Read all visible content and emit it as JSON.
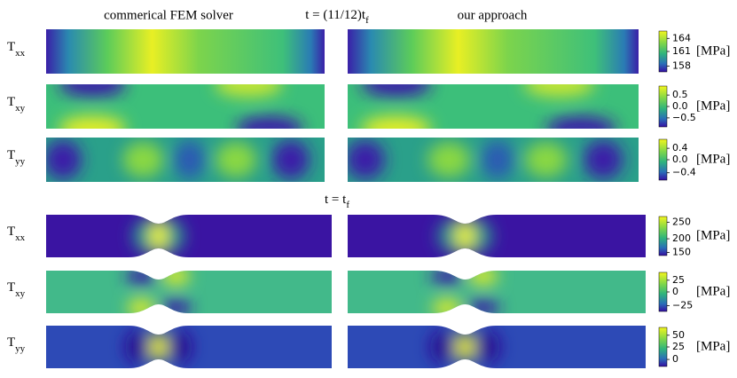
{
  "columns": [
    "commerical FEM solver",
    "our approach"
  ],
  "panels": [
    {
      "time": "t = (11/12)t",
      "time_sub": "f",
      "rows": [
        {
          "label": "T",
          "sub": "xx",
          "ticks": [
            "164",
            "161",
            "158"
          ],
          "unit": "[MPa]"
        },
        {
          "label": "T",
          "sub": "xy",
          "ticks": [
            "0.5",
            "0.0",
            "−0.5"
          ],
          "unit": "[MPa]"
        },
        {
          "label": "T",
          "sub": "yy",
          "ticks": [
            "0.4",
            "0.0",
            "−0.4"
          ],
          "unit": "[MPa]"
        }
      ]
    },
    {
      "time": "t = t",
      "time_sub": "f",
      "rows": [
        {
          "label": "T",
          "sub": "xx",
          "ticks": [
            "250",
            "200",
            "150"
          ],
          "unit": "[MPa]"
        },
        {
          "label": "T",
          "sub": "xy",
          "ticks": [
            "25",
            "0",
            "−25"
          ],
          "unit": "[MPa]"
        },
        {
          "label": "T",
          "sub": "yy",
          "ticks": [
            "50",
            "25",
            "0"
          ],
          "unit": "[MPa]"
        }
      ]
    }
  ]
}
